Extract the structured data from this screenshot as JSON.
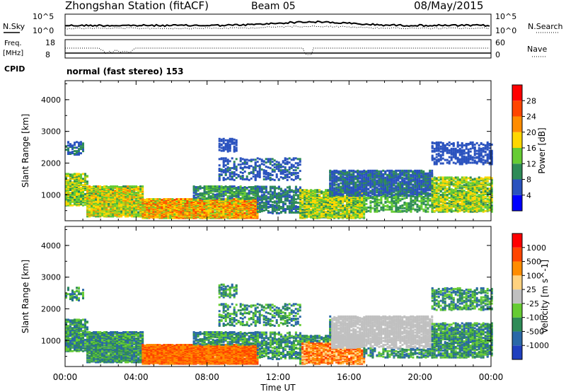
{
  "header": {
    "title": "Zhongshan Station (fitACF)",
    "beam": "Beam 05",
    "date": "08/May/2015"
  },
  "side_labels": {
    "nsky": "N.Sky",
    "nsearch": "N.Search",
    "freq": "Freq.",
    "mhz": "[MHz]",
    "nave": "Nave",
    "cpid": "CPID"
  },
  "cpid_text": "normal (fast stereo) 153",
  "noise_panel": {
    "left_ticks": [
      "10^5",
      "10^0"
    ],
    "right_ticks": [
      "10^5",
      "10^0"
    ]
  },
  "freq_panel": {
    "left_ticks": [
      "18",
      "8"
    ],
    "right_ticks": [
      "60",
      "0"
    ]
  },
  "chart_data": [
    {
      "type": "heatmap",
      "panel": "power",
      "ylabel": "Slant Range [km]",
      "ylim": [
        180,
        4600
      ],
      "y_ticks": [
        "1000",
        "2000",
        "3000",
        "4000"
      ],
      "xlabel": "Time UT",
      "x_ticks": [
        "00:00",
        "04:00",
        "08:00",
        "12:00",
        "16:00",
        "20:00",
        "00:00"
      ],
      "colorbar": {
        "label": "Power [dB]",
        "labels": [
          "28",
          "24",
          "20",
          "16",
          "12",
          "8",
          "4"
        ],
        "colors": [
          "#0000ff",
          "#2a52be",
          "#2e8b57",
          "#66cc33",
          "#ffd700",
          "#ff8c00",
          "#ff4500",
          "#ff0000"
        ]
      }
    },
    {
      "type": "heatmap",
      "panel": "velocity",
      "ylabel": "Slant Range [km]",
      "ylim": [
        180,
        4600
      ],
      "y_ticks": [
        "1000",
        "2000",
        "3000",
        "4000"
      ],
      "xlabel": "Time UT",
      "x_ticks": [
        "00:00",
        "04:00",
        "08:00",
        "12:00",
        "16:00",
        "20:00",
        "00:00"
      ],
      "colorbar": {
        "label": "Velocity [m s^-1]",
        "labels": [
          "1000",
          "500",
          "100",
          "25",
          "-25",
          "-100",
          "-500",
          "-1000"
        ],
        "colors": [
          "#1f3fbf",
          "#2a68a8",
          "#2e8b57",
          "#66cc33",
          "#c0c0c0",
          "#ffd27f",
          "#ff8c00",
          "#ff4500",
          "#ff0000"
        ]
      }
    }
  ],
  "time_axis": {
    "xlabel": "Time UT",
    "ticks": [
      "00:00",
      "04:00",
      "08:00",
      "12:00",
      "16:00",
      "20:00",
      "00:00"
    ]
  }
}
